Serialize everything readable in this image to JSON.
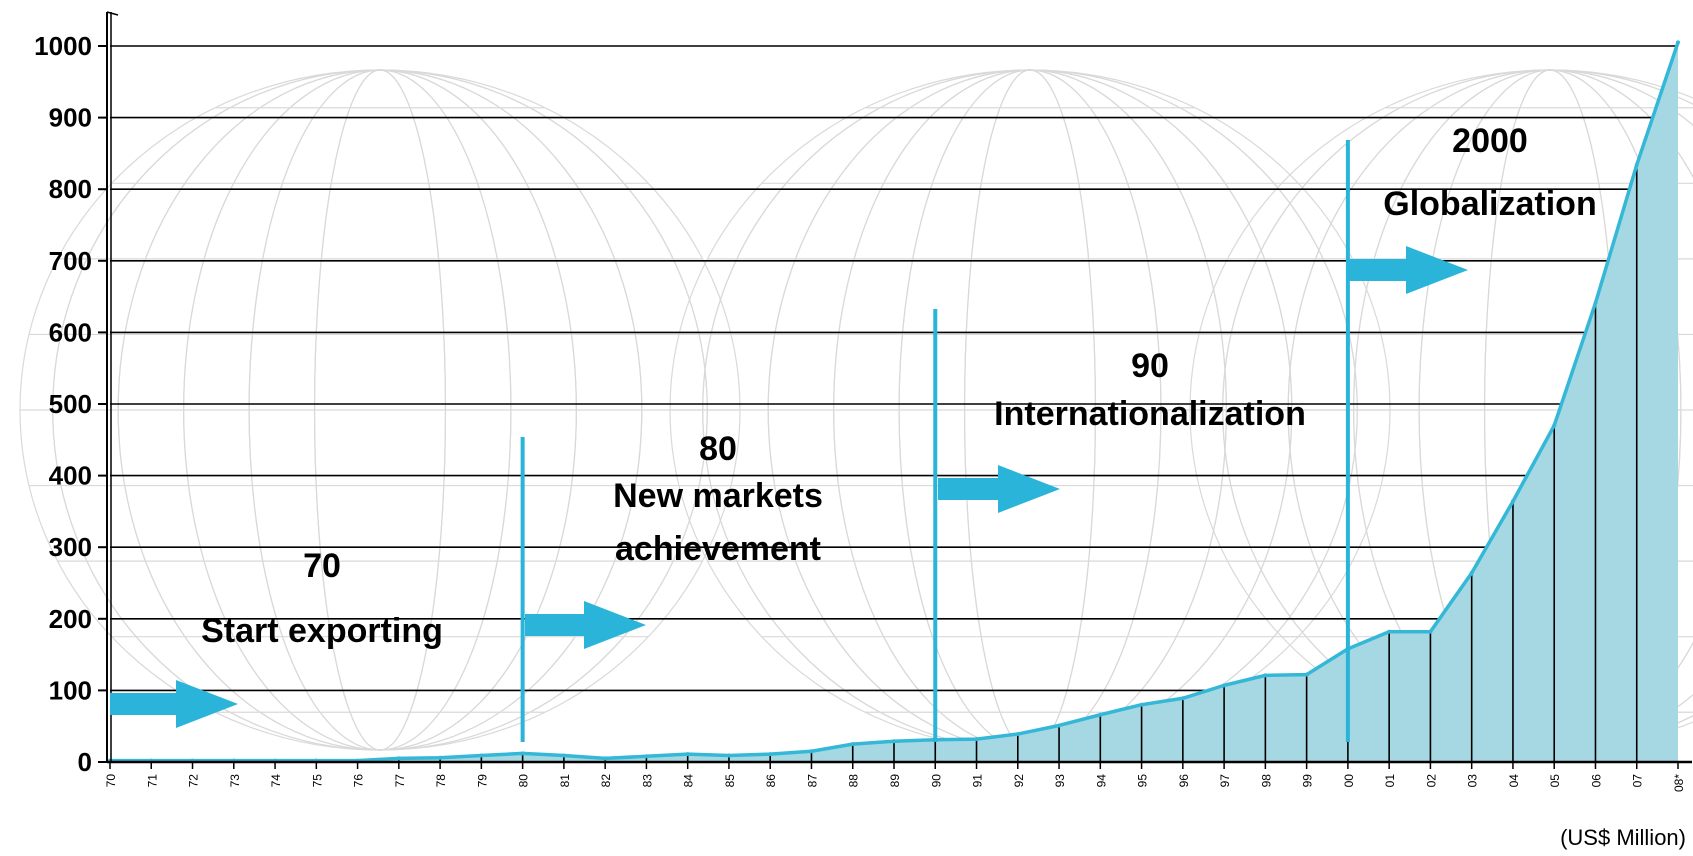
{
  "chart_data": {
    "type": "area",
    "unit_label": "(US$ Million)",
    "ylim": [
      0,
      1000
    ],
    "yticks": [
      "0",
      "100",
      "200",
      "300",
      "400",
      "500",
      "600",
      "700",
      "800",
      "900",
      "1000"
    ],
    "grid": true,
    "area_color": "#a6d8e3",
    "line_color": "#35b7d8",
    "x": [
      "70",
      "71",
      "72",
      "73",
      "74",
      "75",
      "76",
      "77",
      "78",
      "79",
      "80",
      "81",
      "82",
      "83",
      "84",
      "85",
      "86",
      "87",
      "88",
      "89",
      "90",
      "91",
      "92",
      "93",
      "94",
      "95",
      "96",
      "97",
      "98",
      "99",
      "00",
      "01",
      "02",
      "03",
      "04",
      "05",
      "06",
      "07",
      "08*"
    ],
    "values": [
      2,
      2,
      2,
      2,
      2,
      2,
      2,
      5,
      6,
      9,
      12,
      9,
      5,
      8,
      11,
      9,
      11,
      15,
      25,
      29,
      31,
      32,
      39,
      51,
      66,
      80,
      89,
      107,
      121,
      122,
      158,
      182,
      182,
      264,
      364,
      470,
      641,
      834,
      1005
    ],
    "eras": [
      {
        "x": "70",
        "year_label": "70",
        "title_lines": [
          "Start exporting"
        ]
      },
      {
        "x": "80",
        "year_label": "80",
        "title_lines": [
          "New markets",
          "achievement"
        ]
      },
      {
        "x": "90",
        "year_label": "90",
        "title_lines": [
          "Internationalization"
        ]
      },
      {
        "x": "00",
        "year_label": "2000",
        "title_lines": [
          "Globalization"
        ]
      }
    ]
  }
}
